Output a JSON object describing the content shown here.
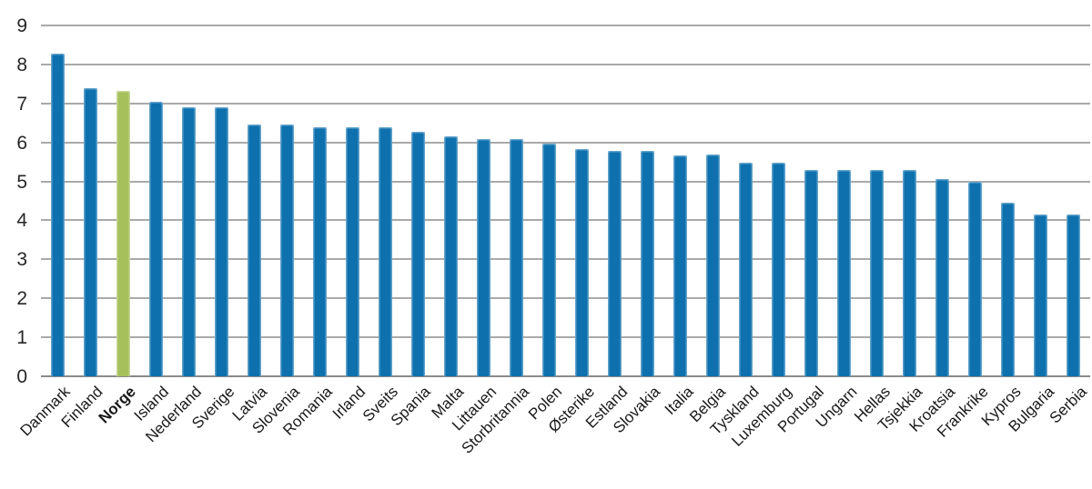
{
  "chart_data": {
    "type": "bar",
    "title": "",
    "xlabel": "",
    "ylabel": "",
    "ylim": [
      0,
      9
    ],
    "yticks": [
      0,
      1,
      2,
      3,
      4,
      5,
      6,
      7,
      8,
      9
    ],
    "grid": true,
    "legend": "none",
    "categories": [
      "Danmark",
      "Finland",
      "Norge",
      "Island",
      "Nederland",
      "Sverige",
      "Latvia",
      "Slovenia",
      "Romania",
      "Irland",
      "Sveits",
      "Spania",
      "Malta",
      "Littauen",
      "Storbritannia",
      "Polen",
      "Østerike",
      "Estland",
      "Slovakia",
      "Italia",
      "Belgia",
      "Tyskland",
      "Luxemburg",
      "Portugal",
      "Ungarn",
      "Hellas",
      "Tsjekkia",
      "Kroatsia",
      "Frankrike",
      "Kypros",
      "Bulgaria",
      "Serbia"
    ],
    "values": [
      8.28,
      7.4,
      7.33,
      7.03,
      6.9,
      6.9,
      6.46,
      6.46,
      6.4,
      6.4,
      6.4,
      6.27,
      6.15,
      6.08,
      6.08,
      5.97,
      5.84,
      5.78,
      5.78,
      5.66,
      5.68,
      5.48,
      5.48,
      5.3,
      5.3,
      5.3,
      5.3,
      5.06,
      5.0,
      4.46,
      4.15,
      4.14
    ],
    "highlight_category": "Norge",
    "highlight_index": 2,
    "colors": {
      "bar": "#0e71ae",
      "highlight_bar": "#a6c05b",
      "gridline": "#a9a9a9",
      "baseline": "#8a8a8a",
      "tick_text": "#262626",
      "label_text": "#1a1a1a",
      "background": "#ffffff"
    }
  }
}
